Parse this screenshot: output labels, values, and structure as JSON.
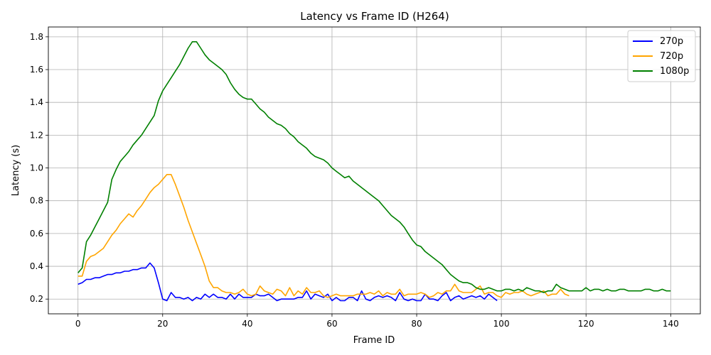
{
  "chart_data": {
    "type": "line",
    "title": "Latency vs Frame ID (H264)",
    "xlabel": "Frame ID",
    "ylabel": "Latency (s)",
    "xlim": [
      -7,
      147
    ],
    "ylim": [
      0.11,
      1.86
    ],
    "xticks": [
      0,
      20,
      40,
      60,
      80,
      100,
      120,
      140
    ],
    "yticks": [
      0.2,
      0.4,
      0.6,
      0.8,
      1.0,
      1.2,
      1.4,
      1.6,
      1.8
    ],
    "ytick_labels": [
      "0.2",
      "0.4",
      "0.6",
      "0.8",
      "1.0",
      "1.2",
      "1.4",
      "1.6",
      "1.8"
    ],
    "grid": true,
    "legend_position": "top-right",
    "series": [
      {
        "name": "270p",
        "color": "#0000ff",
        "values": [
          0.29,
          0.3,
          0.32,
          0.32,
          0.33,
          0.33,
          0.34,
          0.35,
          0.35,
          0.36,
          0.36,
          0.37,
          0.37,
          0.38,
          0.38,
          0.39,
          0.39,
          0.42,
          0.39,
          0.3,
          0.2,
          0.19,
          0.24,
          0.21,
          0.21,
          0.2,
          0.21,
          0.19,
          0.21,
          0.2,
          0.23,
          0.21,
          0.23,
          0.21,
          0.21,
          0.2,
          0.23,
          0.2,
          0.23,
          0.21,
          0.21,
          0.21,
          0.23,
          0.22,
          0.22,
          0.23,
          0.21,
          0.19,
          0.2,
          0.2,
          0.2,
          0.2,
          0.21,
          0.21,
          0.25,
          0.2,
          0.23,
          0.22,
          0.21,
          0.23,
          0.19,
          0.21,
          0.19,
          0.19,
          0.21,
          0.21,
          0.19,
          0.25,
          0.2,
          0.19,
          0.21,
          0.22,
          0.21,
          0.22,
          0.21,
          0.19,
          0.24,
          0.2,
          0.19,
          0.2,
          0.19,
          0.19,
          0.23,
          0.2,
          0.2,
          0.19,
          0.22,
          0.24,
          0.19,
          0.21,
          0.22,
          0.2,
          0.21,
          0.22,
          0.21,
          0.22,
          0.2,
          0.23,
          0.21,
          0.19
        ]
      },
      {
        "name": "720p",
        "color": "#ffa500",
        "values": [
          0.34,
          0.34,
          0.43,
          0.46,
          0.47,
          0.49,
          0.51,
          0.55,
          0.59,
          0.62,
          0.66,
          0.69,
          0.72,
          0.7,
          0.74,
          0.77,
          0.81,
          0.85,
          0.88,
          0.9,
          0.93,
          0.96,
          0.96,
          0.9,
          0.83,
          0.76,
          0.68,
          0.61,
          0.54,
          0.47,
          0.4,
          0.31,
          0.27,
          0.27,
          0.25,
          0.24,
          0.24,
          0.23,
          0.24,
          0.26,
          0.23,
          0.22,
          0.23,
          0.28,
          0.25,
          0.24,
          0.23,
          0.26,
          0.25,
          0.22,
          0.27,
          0.22,
          0.25,
          0.23,
          0.27,
          0.24,
          0.24,
          0.25,
          0.22,
          0.21,
          0.22,
          0.23,
          0.22,
          0.22,
          0.22,
          0.22,
          0.23,
          0.23,
          0.23,
          0.24,
          0.23,
          0.25,
          0.22,
          0.24,
          0.23,
          0.23,
          0.26,
          0.22,
          0.23,
          0.23,
          0.23,
          0.24,
          0.23,
          0.21,
          0.22,
          0.24,
          0.23,
          0.25,
          0.25,
          0.29,
          0.25,
          0.24,
          0.24,
          0.24,
          0.26,
          0.28,
          0.23,
          0.24,
          0.24,
          0.22,
          0.21,
          0.24,
          0.23,
          0.24,
          0.24,
          0.25,
          0.23,
          0.22,
          0.23,
          0.24,
          0.25,
          0.22,
          0.23,
          0.23,
          0.26,
          0.23,
          0.22
        ]
      },
      {
        "name": "1080p",
        "color": "#008000",
        "values": [
          0.36,
          0.39,
          0.55,
          0.59,
          0.64,
          0.69,
          0.74,
          0.79,
          0.93,
          0.99,
          1.04,
          1.07,
          1.1,
          1.14,
          1.17,
          1.2,
          1.24,
          1.28,
          1.32,
          1.41,
          1.47,
          1.51,
          1.55,
          1.59,
          1.63,
          1.68,
          1.73,
          1.77,
          1.77,
          1.73,
          1.69,
          1.66,
          1.64,
          1.62,
          1.6,
          1.57,
          1.52,
          1.48,
          1.45,
          1.43,
          1.42,
          1.42,
          1.39,
          1.36,
          1.34,
          1.31,
          1.29,
          1.27,
          1.26,
          1.24,
          1.21,
          1.19,
          1.16,
          1.14,
          1.12,
          1.09,
          1.07,
          1.06,
          1.05,
          1.03,
          1.0,
          0.98,
          0.96,
          0.94,
          0.95,
          0.92,
          0.9,
          0.88,
          0.86,
          0.84,
          0.82,
          0.8,
          0.77,
          0.74,
          0.71,
          0.69,
          0.67,
          0.64,
          0.6,
          0.56,
          0.53,
          0.52,
          0.49,
          0.47,
          0.45,
          0.43,
          0.41,
          0.38,
          0.35,
          0.33,
          0.31,
          0.3,
          0.3,
          0.29,
          0.27,
          0.26,
          0.26,
          0.27,
          0.26,
          0.25,
          0.25,
          0.26,
          0.26,
          0.25,
          0.26,
          0.25,
          0.27,
          0.26,
          0.25,
          0.25,
          0.24,
          0.25,
          0.25,
          0.29,
          0.27,
          0.26,
          0.25,
          0.25,
          0.25,
          0.25,
          0.27,
          0.25,
          0.26,
          0.26,
          0.25,
          0.26,
          0.25,
          0.25,
          0.26,
          0.26,
          0.25,
          0.25,
          0.25,
          0.25,
          0.26,
          0.26,
          0.25,
          0.25,
          0.26,
          0.25,
          0.25
        ]
      }
    ]
  }
}
